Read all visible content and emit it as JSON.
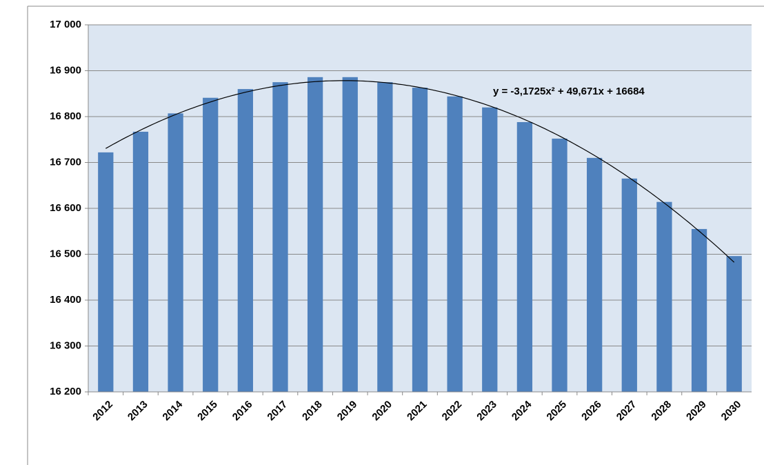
{
  "chart_data": {
    "type": "bar",
    "categories": [
      "2012",
      "2013",
      "2014",
      "2015",
      "2016",
      "2017",
      "2018",
      "2019",
      "2020",
      "2021",
      "2022",
      "2023",
      "2024",
      "2025",
      "2026",
      "2027",
      "2028",
      "2029",
      "2030"
    ],
    "values": [
      16722,
      16767,
      16807,
      16841,
      16860,
      16875,
      16886,
      16886,
      16875,
      16863,
      16844,
      16820,
      16788,
      16752,
      16710,
      16665,
      16614,
      16555,
      16496
    ],
    "color": "#4f81bd",
    "ylim": [
      16200,
      17000
    ],
    "yticks": [
      {
        "value": 16200,
        "label": "16 200"
      },
      {
        "value": 16300,
        "label": "16 300"
      },
      {
        "value": 16400,
        "label": "16 400"
      },
      {
        "value": 16500,
        "label": "16 500"
      },
      {
        "value": 16600,
        "label": "16 600"
      },
      {
        "value": 16700,
        "label": "16 700"
      },
      {
        "value": 16800,
        "label": "16 800"
      },
      {
        "value": 16900,
        "label": "16 900"
      },
      {
        "value": 17000,
        "label": "17 000"
      }
    ],
    "grid": true,
    "trendline": {
      "label": "y = -3,1725x² + 49,671x + 16684",
      "coefficients": [
        -3.1725,
        49.671,
        16684
      ]
    }
  }
}
